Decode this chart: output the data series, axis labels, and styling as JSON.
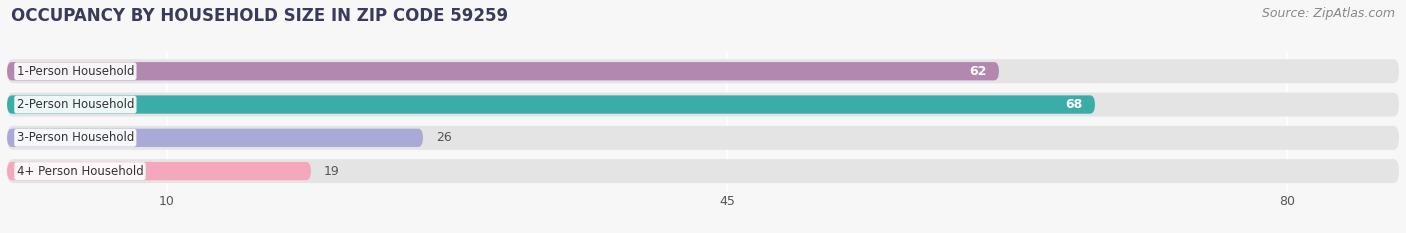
{
  "title": "OCCUPANCY BY HOUSEHOLD SIZE IN ZIP CODE 59259",
  "source": "Source: ZipAtlas.com",
  "categories": [
    "1-Person Household",
    "2-Person Household",
    "3-Person Household",
    "4+ Person Household"
  ],
  "values": [
    62,
    68,
    26,
    19
  ],
  "bar_colors": [
    "#b388b0",
    "#3aada8",
    "#a9aad6",
    "#f4a8bb"
  ],
  "label_colors": [
    "white",
    "white",
    "black",
    "black"
  ],
  "x_ticks": [
    10,
    45,
    80
  ],
  "xlim": [
    0,
    87
  ],
  "title_fontsize": 12,
  "source_fontsize": 9,
  "bar_label_fontsize": 9,
  "cat_label_fontsize": 8.5,
  "background_color": "#f7f7f7",
  "bar_background_color": "#e4e4e4"
}
